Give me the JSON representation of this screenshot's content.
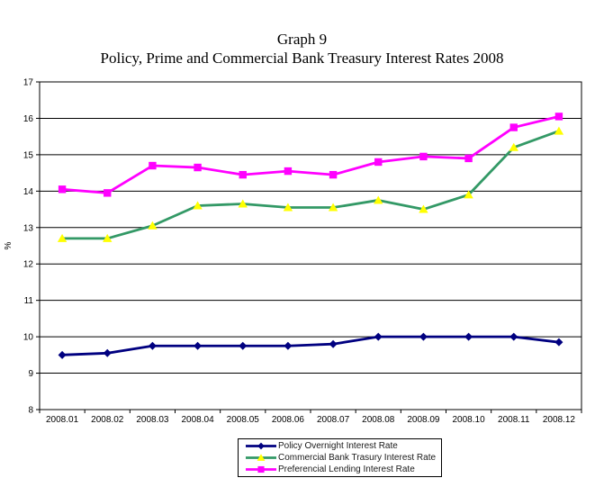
{
  "chart_data": {
    "type": "line",
    "title": "Graph 9",
    "subtitle": "Policy, Prime and Commercial Bank Treasury Interest Rates 2008",
    "ylabel": "%",
    "ylim": [
      8,
      17
    ],
    "ytick_step": 1,
    "grid": true,
    "legend_position": "bottom",
    "categories": [
      "2008.01",
      "2008.02",
      "2008.03",
      "2008.04",
      "2008.05",
      "2008.06",
      "2008.07",
      "2008.08",
      "2008.09",
      "2008.10",
      "2008.11",
      "2008.12"
    ],
    "series": [
      {
        "name": "Policy Overnight Interest Rate",
        "color": "#000080",
        "marker": "diamond",
        "marker_color": "#000080",
        "values": [
          9.5,
          9.55,
          9.75,
          9.75,
          9.75,
          9.75,
          9.8,
          10.0,
          10.0,
          10.0,
          10.0,
          9.85
        ]
      },
      {
        "name": "Commercial Bank Trasury Interest Rate",
        "color": "#339966",
        "marker": "triangle",
        "marker_color": "#FFFF00",
        "values": [
          12.7,
          12.7,
          13.05,
          13.6,
          13.65,
          13.55,
          13.55,
          13.75,
          13.5,
          13.9,
          15.2,
          15.65
        ]
      },
      {
        "name": "Preferencial Lending Interest Rate",
        "color": "#FF00FF",
        "marker": "square",
        "marker_color": "#FF00FF",
        "values": [
          14.05,
          13.95,
          14.7,
          14.65,
          14.45,
          14.55,
          14.45,
          14.8,
          14.95,
          14.9,
          15.75,
          16.05
        ]
      }
    ]
  },
  "colors": {
    "axis": "#000000",
    "gridline": "#000000",
    "text": "#000000",
    "background": "#ffffff"
  }
}
